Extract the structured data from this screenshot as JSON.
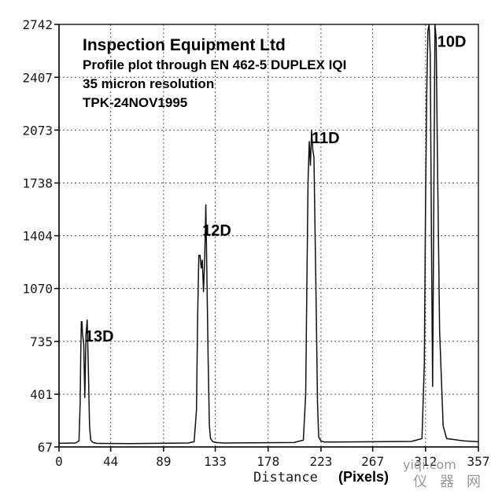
{
  "chart_data": {
    "type": "line",
    "title": "Inspection Equipment Ltd",
    "subtitle_lines": [
      "Profile plot through EN 462-5 DUPLEX IQI",
      "35 micron resolution",
      "TPK-24NOV1995"
    ],
    "xlabel": "Distance",
    "xlabel_unit": "(Pixels)",
    "ylabel": "",
    "xlim": [
      0,
      357
    ],
    "ylim": [
      67,
      2742
    ],
    "x_ticks": [
      0,
      44,
      89,
      133,
      178,
      223,
      267,
      312,
      357
    ],
    "y_ticks": [
      67,
      401,
      735,
      1070,
      1404,
      1738,
      2073,
      2407,
      2742
    ],
    "y_tick_labels": [
      "67",
      "401",
      "735",
      "1070",
      "1404",
      "1738",
      "2073",
      "2407",
      "2742"
    ],
    "grid": true,
    "series": [
      {
        "values_note": "",
        "x": [
          0,
          14,
          17,
          18,
          18.5,
          19,
          19.5,
          20,
          21,
          22,
          23,
          24,
          25,
          26,
          27,
          29,
          32,
          60,
          110,
          115,
          117,
          118,
          119,
          120,
          121,
          122,
          123,
          124,
          125,
          126,
          127,
          128,
          129,
          131,
          134,
          140,
          200,
          208,
          210,
          211,
          212,
          213,
          214,
          215,
          216,
          217,
          218,
          219,
          220,
          221,
          223,
          226,
          235,
          300,
          309,
          311,
          312,
          313,
          314,
          315,
          316,
          317,
          318,
          319,
          320,
          321,
          322,
          324,
          327,
          330,
          345,
          357
        ],
        "y": [
          90,
          92,
          105,
          350,
          650,
          860,
          860,
          780,
          720,
          380,
          780,
          870,
          560,
          200,
          110,
          95,
          90,
          88,
          92,
          100,
          300,
          900,
          1280,
          1280,
          1200,
          1250,
          1050,
          1250,
          1600,
          1100,
          600,
          200,
          120,
          100,
          95,
          92,
          95,
          110,
          400,
          1100,
          1750,
          2000,
          1850,
          2070,
          1950,
          1900,
          1400,
          900,
          350,
          130,
          105,
          98,
          98,
          102,
          120,
          600,
          1600,
          2300,
          2700,
          2742,
          2550,
          1400,
          450,
          1600,
          2742,
          2650,
          2000,
          800,
          200,
          120,
          105,
          100
        ]
      }
    ],
    "annotations": [
      {
        "text": "13D",
        "x": 22,
        "y": 735
      },
      {
        "text": "12D",
        "x": 122,
        "y": 1404
      },
      {
        "text": "11D",
        "x": 215,
        "y": 1990
      },
      {
        "text": "10D",
        "x": 322,
        "y": 2600
      }
    ]
  },
  "watermark": {
    "domain": "yiqi.com",
    "chars": [
      "仪",
      "器",
      "网"
    ]
  },
  "colors": {
    "line": "#111111",
    "background": "#ffffff",
    "grid": "#555555"
  }
}
